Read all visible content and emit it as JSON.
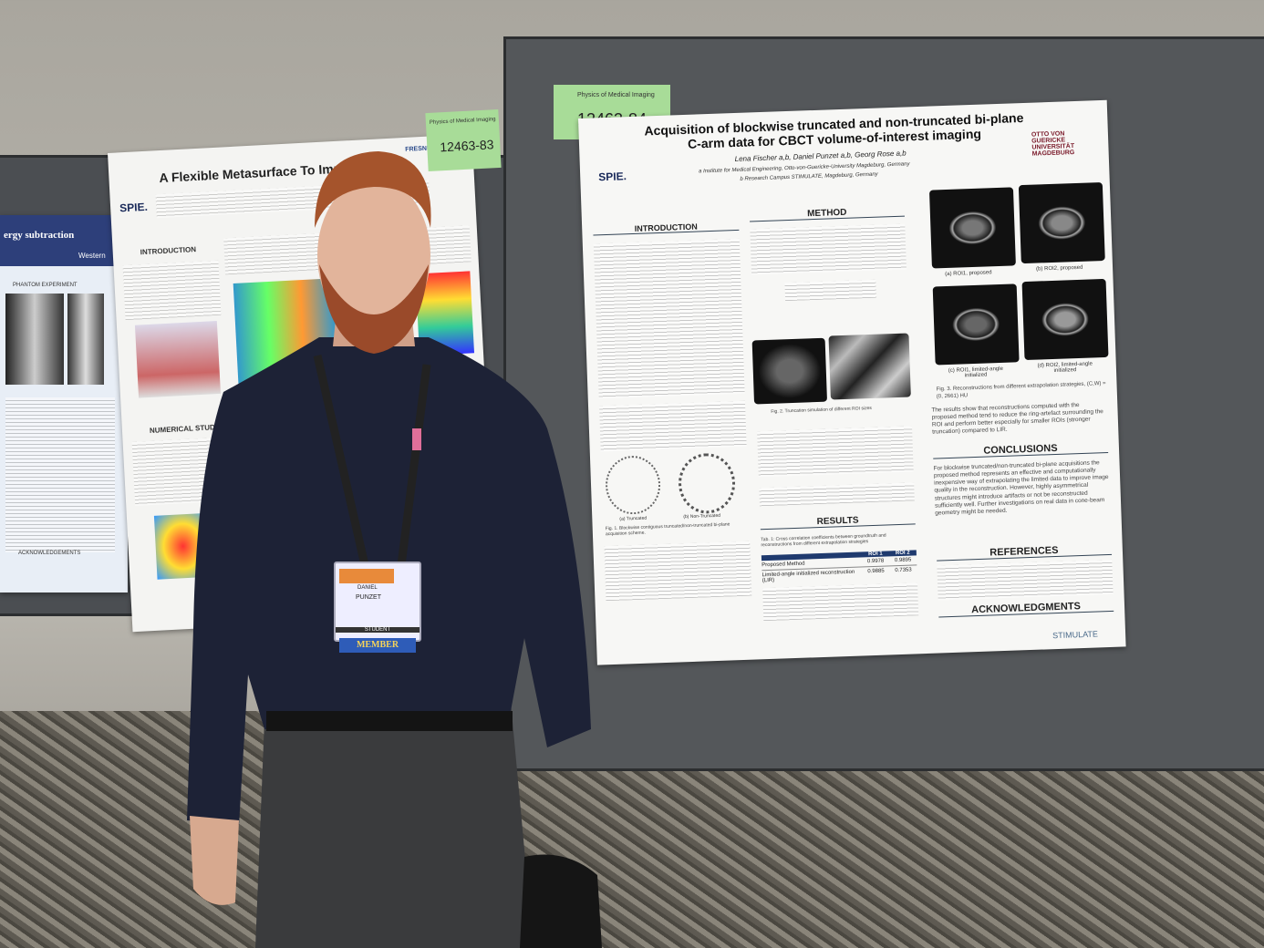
{
  "left_poster": {
    "title": "A Flexible Metasurface To Improve",
    "logo": "SPIE.",
    "partner": "FRESNEL",
    "sections": [
      "INTRODUCTION",
      "NUMERICAL STUDY"
    ]
  },
  "far_left_poster": {
    "title": "ergy subtraction",
    "university": "Western",
    "sections": [
      "PHANTOM EXPERIMENT",
      "ACKNOWLEDGEMENTS"
    ]
  },
  "tags": [
    {
      "track": "Physics of Medical Imaging",
      "number": "12463-83"
    },
    {
      "track": "Physics of Medical Imaging",
      "number": "12463-84"
    }
  ],
  "poster": {
    "logo": "SPIE.",
    "university": "OTTO VON GUERICKE UNIVERSITÄT MAGDEBURG",
    "title": "Acquisition of blockwise truncated and non-truncated bi-plane C-arm data  for CBCT volume-of-interest imaging",
    "authors": "Lena Fischer a,b, Daniel Punzet a,b, Georg Rose a,b",
    "affiliations": [
      "a Institute for Medical Engineering, Otto-von-Guericke-University Magdeburg, Germany",
      "b Research Campus STIMULATE, Magdeburg, Germany"
    ],
    "sections": {
      "introduction": "INTRODUCTION",
      "method": "METHOD",
      "results": "RESULTS",
      "conclusions": "CONCLUSIONS",
      "references": "REFERENCES",
      "acknowledgments": "ACKNOWLEDGMENTS"
    },
    "figure_labels": [
      "(a) ROI1, proposed",
      "(b) ROI2, proposed",
      "(c) ROI1, limited-angle initialized",
      "(d) ROI2, limited-angle initialized"
    ],
    "fig1_labels": [
      "(a) Truncated",
      "(b) Non-Truncated"
    ],
    "fig1_caption": "Fig. 1. Blockwise contiguous truncated/non-truncated bi-plane acquisition scheme.",
    "fig2_caption": "Fig. 2. Truncation simulation of different ROI sizes",
    "fig3_caption": "Fig. 3. Reconstructions from different extrapolation strategies, (C,W) = (0, 2661) HU",
    "results_text": "The results show that reconstructions computed with the proposed method tend to reduce the ring-artefact surrounding the ROI and perform better especially for smaller ROIs (stronger truncation) compared to LIR.",
    "conclusions_text": "For blockwise truncated/non-truncated bi-plane acquisitions the proposed method represents an effective and computationally inexpensive way of extrapolating the limited data to improve image quality in the reconstruction. However, highly asymmetrical structures might introduce artifacts or not be reconstructed sufficiently well. Further investigations on real data in cone-beam geometry might be needed.",
    "table": {
      "caption": "Tab. 1: Cross correlation coefficients between groundtruth and reconstructions from different extrapolation strategies",
      "header": [
        "ROI 1",
        "ROI 2"
      ],
      "rows": [
        [
          "Proposed Method",
          "0.9978",
          "0.9895"
        ],
        [
          "Limited-angle initialized reconstruction (LIR)",
          "0.9885",
          "0.7353"
        ]
      ]
    },
    "footer_logo": "STIMULATE"
  },
  "badge": {
    "first_name": "DANIEL",
    "last_name": "PUNZET",
    "status": "STUDENT",
    "ribbon": "MEMBER"
  }
}
